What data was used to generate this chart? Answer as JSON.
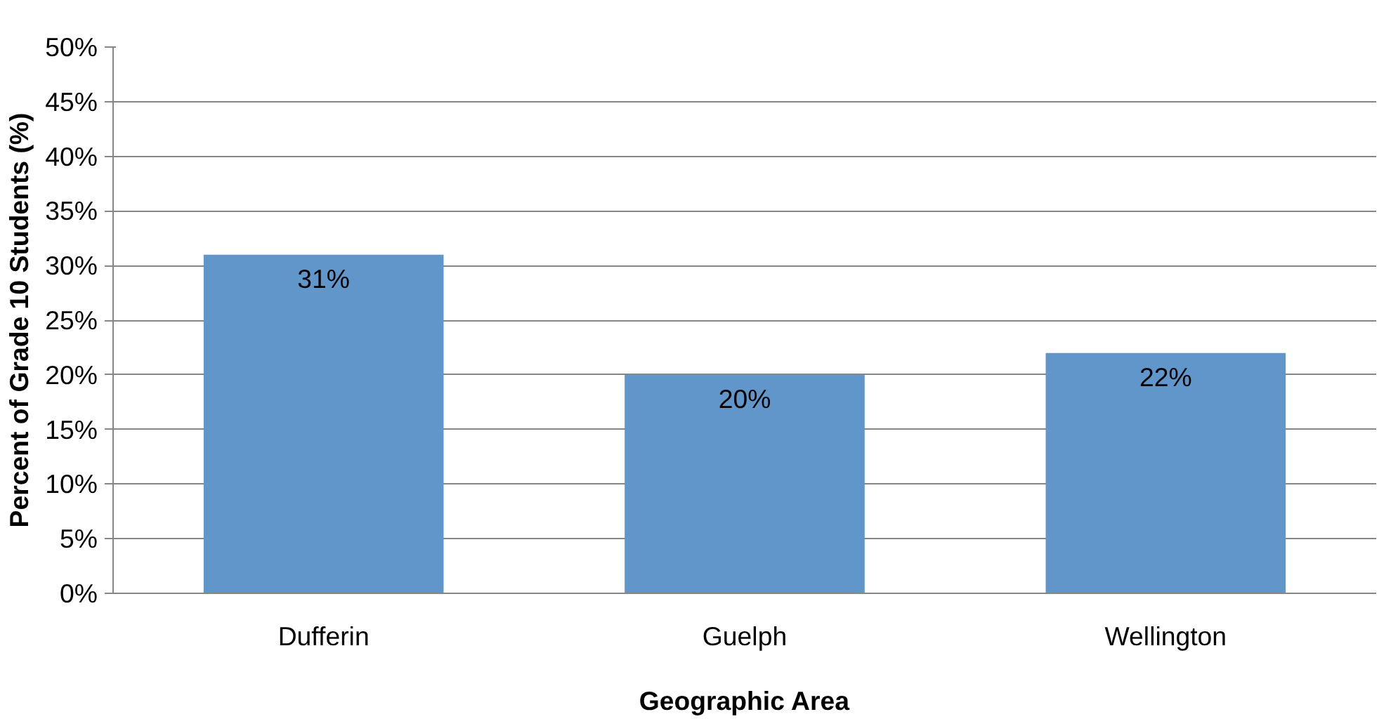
{
  "chart_data": {
    "type": "bar",
    "xlabel": "Geographic Area",
    "ylabel": "Percent of Grade 10 Students (%)",
    "categories": [
      "Dufferin",
      "Guelph",
      "Wellington"
    ],
    "values": [
      31,
      20,
      22
    ],
    "color": "#6096c9",
    "value_labels": [
      "31%",
      "20%",
      "22%"
    ],
    "ylim": [
      0,
      50
    ],
    "yticks": [
      {
        "value": 0,
        "label": "0%"
      },
      {
        "value": 5,
        "label": "5%"
      },
      {
        "value": 10,
        "label": "10%"
      },
      {
        "value": 15,
        "label": "15%"
      },
      {
        "value": 20,
        "label": "20%"
      },
      {
        "value": 25,
        "label": "25%"
      },
      {
        "value": 30,
        "label": "30%"
      },
      {
        "value": 35,
        "label": "35%"
      },
      {
        "value": 40,
        "label": "40%"
      },
      {
        "value": 45,
        "label": "45%"
      },
      {
        "value": 50,
        "label": "50%"
      }
    ],
    "grid": "y"
  }
}
